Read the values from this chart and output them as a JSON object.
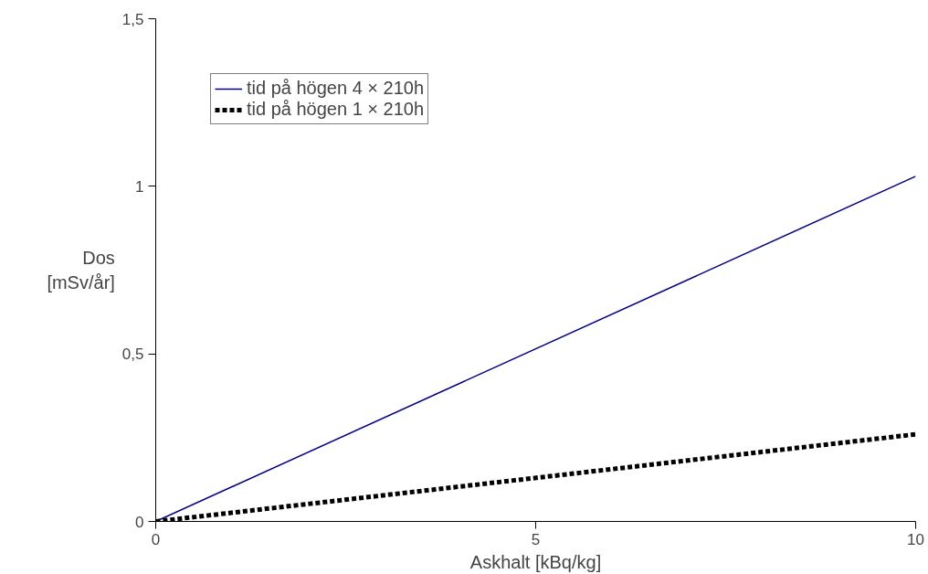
{
  "chart_data": {
    "type": "line",
    "xlabel": "Askhalt [kBq/kg]",
    "ylabel": "Dos\n[mSv/år]",
    "x": [
      0,
      10
    ],
    "series": [
      {
        "name": "tid på högen 4 × 210h",
        "color": "#000080",
        "values": [
          0,
          1.03
        ],
        "line_style": "solid"
      },
      {
        "name": "tid på högen 1 × 210h",
        "color": "#000000",
        "values": [
          0,
          0.26
        ],
        "line_style": "dotted"
      }
    ],
    "xlim": [
      0,
      10
    ],
    "ylim": [
      0,
      1.5
    ],
    "xticks": [
      0,
      5,
      10
    ],
    "yticks": [
      0,
      {
        "value": 0.5,
        "label": "0,5"
      },
      1,
      {
        "value": 1.5,
        "label": "1,5"
      }
    ],
    "grid": false,
    "legend": "top left",
    "marker": "none"
  }
}
